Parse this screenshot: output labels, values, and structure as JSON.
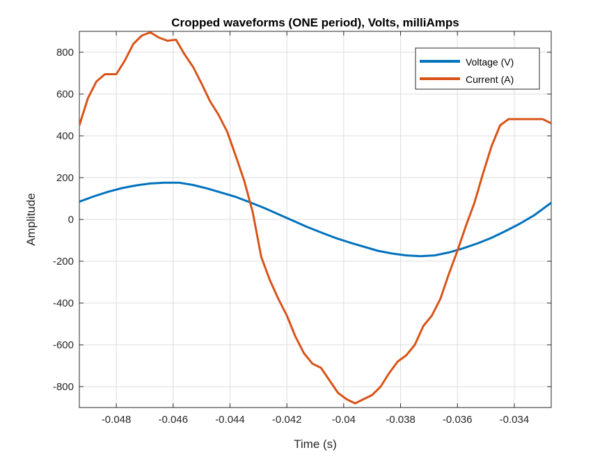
{
  "chart_data": {
    "type": "line",
    "title": "Cropped waveforms (ONE period), Volts, milliAmps",
    "xlabel": "Time (s)",
    "ylabel": "Amplitude",
    "xlim": [
      -0.0493,
      -0.0327
    ],
    "ylim": [
      -900,
      900
    ],
    "xticks": [
      -0.048,
      -0.046,
      -0.044,
      -0.042,
      -0.04,
      -0.038,
      -0.036,
      -0.034
    ],
    "xtick_labels": [
      "-0.048",
      "-0.046",
      "-0.044",
      "-0.042",
      "-0.04",
      "-0.038",
      "-0.036",
      "-0.034"
    ],
    "yticks": [
      -800,
      -600,
      -400,
      -200,
      0,
      200,
      400,
      600,
      800
    ],
    "ytick_labels": [
      "-800",
      "-600",
      "-400",
      "-200",
      "0",
      "200",
      "400",
      "600",
      "800"
    ],
    "grid": true,
    "legend_position": "top-right",
    "colors": {
      "voltage": "#0072BD",
      "current": "#D95319",
      "grid": "#dcdcdc",
      "axis": "#262626"
    },
    "series": [
      {
        "name": "Voltage (V)",
        "color": "#0072BD",
        "x": [
          -0.0493,
          -0.0488,
          -0.0483,
          -0.0478,
          -0.0473,
          -0.0468,
          -0.0463,
          -0.0458,
          -0.0453,
          -0.0448,
          -0.0443,
          -0.0438,
          -0.0433,
          -0.0428,
          -0.0423,
          -0.0418,
          -0.0413,
          -0.0408,
          -0.0403,
          -0.0398,
          -0.0393,
          -0.0388,
          -0.0383,
          -0.0378,
          -0.0373,
          -0.0368,
          -0.0363,
          -0.0358,
          -0.0353,
          -0.0348,
          -0.0343,
          -0.0338,
          -0.0333,
          -0.0327
        ],
        "y": [
          85,
          110,
          132,
          150,
          163,
          172,
          176,
          176,
          165,
          148,
          128,
          108,
          82,
          55,
          25,
          -5,
          -35,
          -62,
          -88,
          -110,
          -130,
          -150,
          -163,
          -172,
          -176,
          -172,
          -158,
          -138,
          -115,
          -88,
          -55,
          -20,
          20,
          80
        ]
      },
      {
        "name": "Current (A)",
        "color": "#D95319",
        "x": [
          -0.0493,
          -0.049,
          -0.0487,
          -0.0484,
          -0.048,
          -0.0477,
          -0.0474,
          -0.0471,
          -0.0468,
          -0.0465,
          -0.0462,
          -0.0459,
          -0.0456,
          -0.0453,
          -0.045,
          -0.0447,
          -0.0444,
          -0.0441,
          -0.0438,
          -0.0435,
          -0.0432,
          -0.0429,
          -0.0426,
          -0.0423,
          -0.042,
          -0.0417,
          -0.0414,
          -0.0411,
          -0.0408,
          -0.0405,
          -0.0402,
          -0.0399,
          -0.0396,
          -0.0393,
          -0.039,
          -0.0387,
          -0.0384,
          -0.0381,
          -0.0378,
          -0.0375,
          -0.0372,
          -0.0369,
          -0.0366,
          -0.0363,
          -0.036,
          -0.0357,
          -0.0354,
          -0.0351,
          -0.0348,
          -0.0345,
          -0.0342,
          -0.0339,
          -0.0336,
          -0.0333,
          -0.033,
          -0.0327
        ],
        "y": [
          450,
          580,
          660,
          695,
          695,
          760,
          840,
          880,
          895,
          870,
          855,
          860,
          790,
          730,
          650,
          565,
          500,
          420,
          305,
          185,
          35,
          -180,
          -290,
          -380,
          -460,
          -560,
          -640,
          -690,
          -710,
          -770,
          -830,
          -860,
          -880,
          -860,
          -840,
          -800,
          -735,
          -680,
          -650,
          -600,
          -510,
          -460,
          -380,
          -260,
          -150,
          -30,
          80,
          220,
          350,
          450,
          480,
          480,
          480,
          480,
          480,
          460
        ]
      }
    ]
  }
}
